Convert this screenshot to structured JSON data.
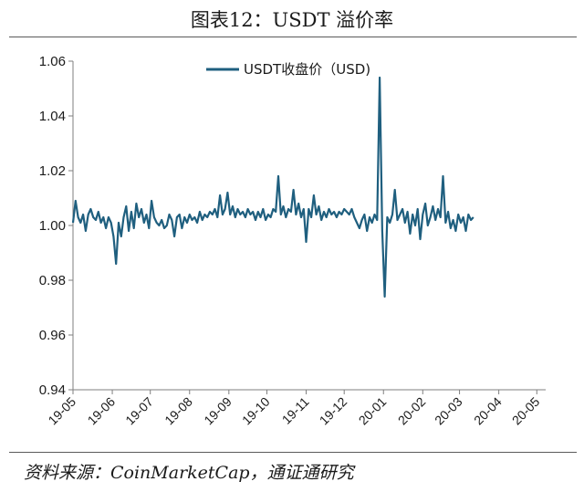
{
  "title": "图表12：USDT 溢价率",
  "source": "资料来源：CoinMarketCap，通证通研究",
  "colors": {
    "series": "#1f5f7f",
    "axis": "#7f7f7f",
    "text": "#1a1a1a"
  },
  "chart_data": {
    "type": "line",
    "title": "图表12：USDT 溢价率",
    "xlabel": "",
    "ylabel": "",
    "ylim": [
      0.94,
      1.06
    ],
    "yticks": [
      "0.94",
      "0.96",
      "0.98",
      "1.00",
      "1.02",
      "1.04",
      "1.06"
    ],
    "xticks": [
      "19-05",
      "19-06",
      "19-07",
      "19-08",
      "19-09",
      "19-10",
      "19-11",
      "19-12",
      "20-01",
      "20-02",
      "20-03",
      "20-04",
      "20-05"
    ],
    "legend_position": "top-center",
    "grid": false,
    "series": [
      {
        "name": "USDT收盘价（USD)",
        "x_start": "2019-05-01",
        "x_step_days": 2,
        "values": [
          1.001,
          1.009,
          1.003,
          1.001,
          1.004,
          0.998,
          1.004,
          1.006,
          1.003,
          1.002,
          1.005,
          1.001,
          1.003,
          0.999,
          1.003,
          1.001,
          0.996,
          0.986,
          1.001,
          0.996,
          1.003,
          1.007,
          0.998,
          1.005,
          0.999,
          1.008,
          1.003,
          1.006,
          1.001,
          1.004,
          0.999,
          1.009,
          1.003,
          1.001,
          1.0,
          1.002,
          0.999,
          1.0,
          1.004,
          1.002,
          0.996,
          1.003,
          1.004,
          0.999,
          1.003,
          1.001,
          1.004,
          1.002,
          1.003,
          1.001,
          1.005,
          1.002,
          1.004,
          1.003,
          1.005,
          1.004,
          1.006,
          1.003,
          1.011,
          1.004,
          1.006,
          1.012,
          1.004,
          1.007,
          1.003,
          1.006,
          1.004,
          1.005,
          1.003,
          1.006,
          1.004,
          1.005,
          1.002,
          1.005,
          1.003,
          1.006,
          1.002,
          1.004,
          1.003,
          1.006,
          1.005,
          1.018,
          1.004,
          1.007,
          1.003,
          1.006,
          1.005,
          1.013,
          1.004,
          1.008,
          1.003,
          1.006,
          0.994,
          1.006,
          1.003,
          1.011,
          1.004,
          1.007,
          1.002,
          1.005,
          1.003,
          1.006,
          1.004,
          1.005,
          1.003,
          1.005,
          1.004,
          1.006,
          1.005,
          1.004,
          1.006,
          1.003,
          1.001,
          0.999,
          1.002,
          1.004,
          0.998,
          1.003,
          1.001,
          1.004,
          1.002,
          1.054,
          0.998,
          0.974,
          1.003,
          1.001,
          1.004,
          1.013,
          1.002,
          1.004,
          1.006,
          1.001,
          1.005,
          0.997,
          1.004,
          1.0,
          1.006,
          0.995,
          1.004,
          1.008,
          1.0,
          1.003,
          1.007,
          1.002,
          1.006,
          1.003,
          1.018,
          1.001,
          1.005,
          0.999,
          1.002,
          0.998,
          1.004,
          1.001,
          1.003,
          0.998,
          1.004,
          1.002,
          1.003
        ]
      }
    ]
  }
}
